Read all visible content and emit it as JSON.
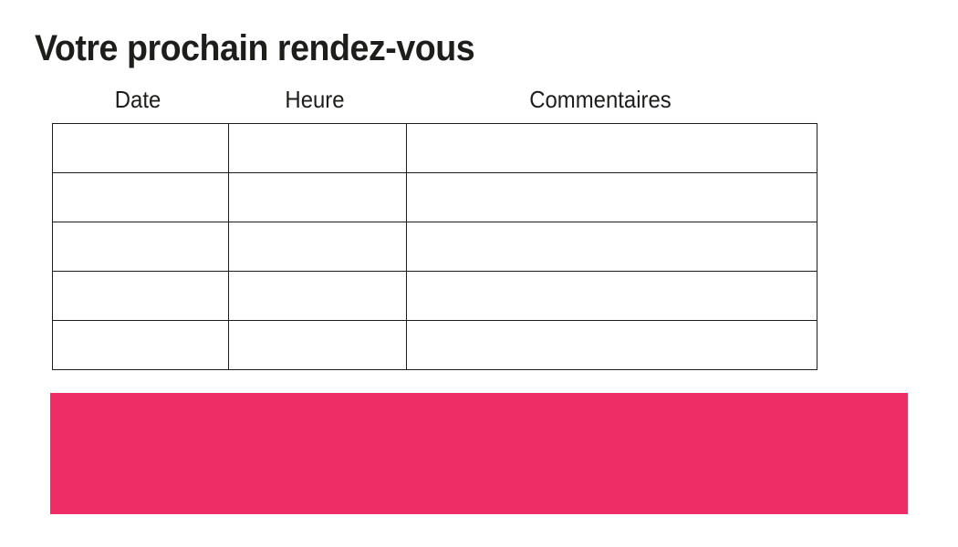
{
  "page": {
    "title": "Votre prochain rendez-vous",
    "background_color": "#ffffff",
    "text_color": "#1d1d1b"
  },
  "table": {
    "headers": [
      "Date",
      "Heure",
      "Commentaires"
    ],
    "rows": [
      [
        "",
        "",
        ""
      ],
      [
        "",
        "",
        ""
      ],
      [
        "",
        "",
        ""
      ],
      [
        "",
        "",
        ""
      ],
      [
        "",
        "",
        ""
      ]
    ],
    "border_color": "#1d1d1b"
  },
  "accent_band": {
    "color": "#ee2d67"
  }
}
